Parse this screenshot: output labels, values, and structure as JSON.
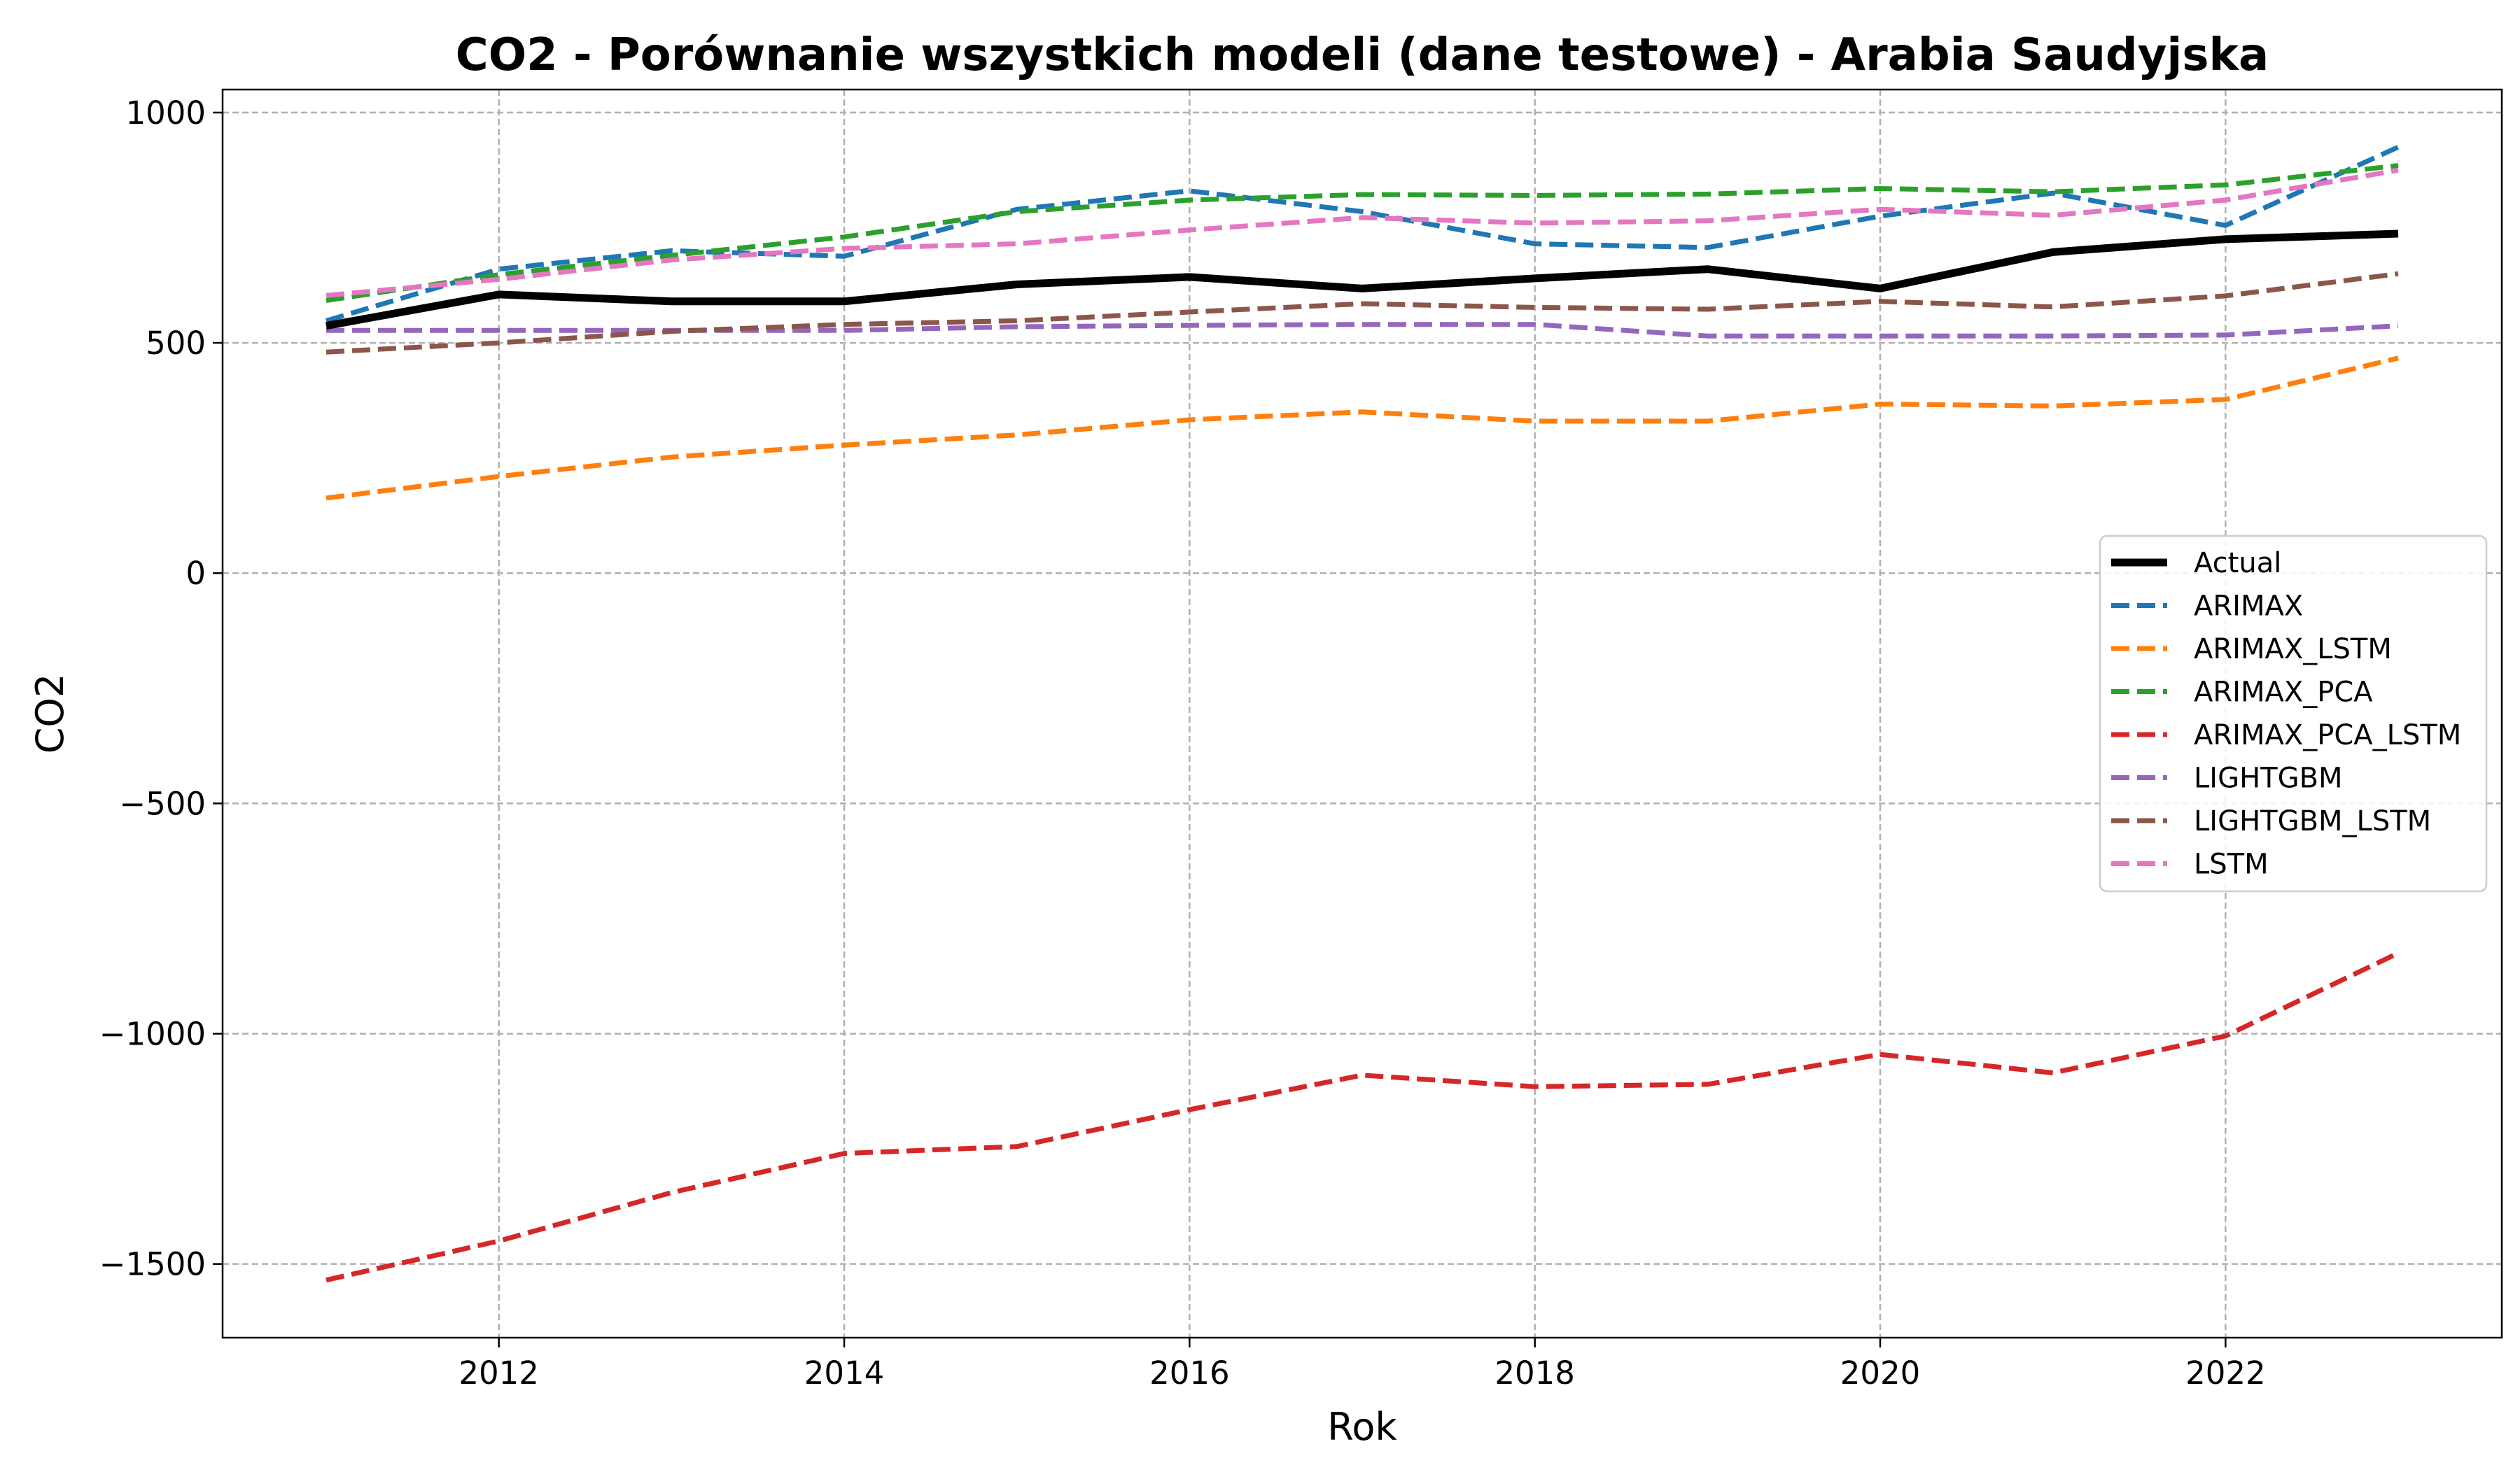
{
  "chart_data": {
    "type": "line",
    "title": "CO2 - Porównanie wszystkich modeli (dane testowe) - Arabia Saudyjska",
    "xlabel": "Rok",
    "ylabel": "CO2",
    "xlim": [
      2010.4,
      2023.6
    ],
    "ylim": [
      -1660,
      1050
    ],
    "x_ticks": [
      2012,
      2014,
      2016,
      2018,
      2020,
      2022
    ],
    "y_ticks": [
      -1500,
      -1000,
      -500,
      0,
      500,
      1000
    ],
    "y_tick_labels": [
      "−1500",
      "−1000",
      "−500",
      "0",
      "500",
      "1000"
    ],
    "grid": true,
    "legend_position": "center-right",
    "x": [
      2011,
      2012,
      2013,
      2014,
      2015,
      2016,
      2017,
      2018,
      2019,
      2020,
      2021,
      2022,
      2023
    ],
    "series": [
      {
        "name": "Actual",
        "color": "#000000",
        "style": "solid",
        "values": [
          537,
          605,
          590,
          590,
          627,
          643,
          618,
          640,
          660,
          618,
          697,
          725,
          737
        ]
      },
      {
        "name": "ARIMAX",
        "color": "#1f77b4",
        "style": "dashed",
        "values": [
          548,
          660,
          700,
          688,
          790,
          830,
          785,
          715,
          707,
          775,
          825,
          755,
          925
        ]
      },
      {
        "name": "ARIMAX_LSTM",
        "color": "#ff7f0e",
        "style": "dashed",
        "values": [
          163,
          210,
          252,
          278,
          300,
          333,
          350,
          330,
          330,
          367,
          363,
          377,
          467
        ]
      },
      {
        "name": "ARIMAX_PCA",
        "color": "#2ca02c",
        "style": "dashed",
        "values": [
          592,
          648,
          690,
          730,
          785,
          810,
          822,
          820,
          823,
          835,
          828,
          843,
          885
        ]
      },
      {
        "name": "ARIMAX_PCA_LSTM",
        "color": "#d62728",
        "style": "dashed",
        "values": [
          -1535,
          -1450,
          -1345,
          -1260,
          -1245,
          -1165,
          -1090,
          -1115,
          -1110,
          -1045,
          -1085,
          -1005,
          -825
        ]
      },
      {
        "name": "LIGHTGBM",
        "color": "#9467bd",
        "style": "dashed",
        "values": [
          527,
          527,
          527,
          527,
          535,
          538,
          540,
          540,
          515,
          515,
          515,
          517,
          537
        ]
      },
      {
        "name": "LIGHTGBM_LSTM",
        "color": "#8c564b",
        "style": "dashed",
        "values": [
          480,
          500,
          525,
          540,
          548,
          567,
          585,
          577,
          573,
          590,
          578,
          602,
          650
        ]
      },
      {
        "name": "LSTM",
        "color": "#e377c2",
        "style": "dashed",
        "values": [
          603,
          638,
          680,
          705,
          715,
          745,
          772,
          760,
          765,
          790,
          777,
          810,
          875
        ]
      }
    ]
  }
}
